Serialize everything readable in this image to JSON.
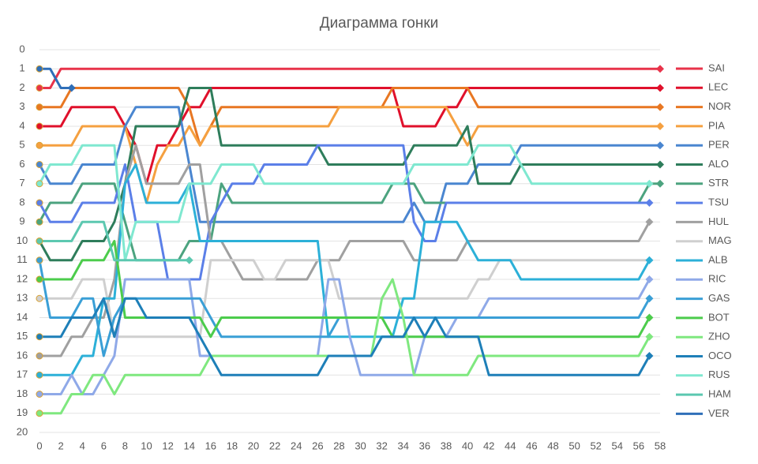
{
  "chart_data": {
    "type": "line",
    "title": "Диаграмма гонки",
    "x": [
      0,
      1,
      2,
      3,
      4,
      5,
      6,
      7,
      8,
      9,
      10,
      11,
      12,
      13,
      14,
      15,
      16,
      17,
      18,
      19,
      20,
      21,
      22,
      23,
      24,
      25,
      26,
      27,
      28,
      29,
      30,
      31,
      32,
      33,
      34,
      35,
      36,
      37,
      38,
      39,
      40,
      41,
      42,
      43,
      44,
      45,
      46,
      47,
      48,
      49,
      50,
      51,
      52,
      53,
      54,
      55,
      56,
      57,
      58
    ],
    "xlim": [
      0,
      58
    ],
    "xticks": [
      0,
      2,
      4,
      6,
      8,
      10,
      12,
      14,
      16,
      18,
      20,
      22,
      24,
      26,
      28,
      30,
      32,
      34,
      36,
      38,
      40,
      42,
      44,
      46,
      48,
      50,
      52,
      54,
      56,
      58
    ],
    "ylim": [
      20,
      0
    ],
    "yticks": [
      0,
      1,
      2,
      3,
      4,
      5,
      6,
      7,
      8,
      9,
      10,
      11,
      12,
      13,
      14,
      15,
      16,
      17,
      18,
      19,
      20
    ],
    "grid": true,
    "series": [
      {
        "name": "SAI",
        "color": "#e8334a",
        "values": [
          2,
          2,
          1,
          1,
          1,
          1,
          1,
          1,
          1,
          1,
          1,
          1,
          1,
          1,
          1,
          1,
          1,
          1,
          1,
          1,
          1,
          1,
          1,
          1,
          1,
          1,
          1,
          1,
          1,
          1,
          1,
          1,
          1,
          1,
          1,
          1,
          1,
          1,
          1,
          1,
          1,
          1,
          1,
          1,
          1,
          1,
          1,
          1,
          1,
          1,
          1,
          1,
          1,
          1,
          1,
          1,
          1,
          1,
          1
        ]
      },
      {
        "name": "LEC",
        "color": "#e0102b",
        "values": [
          4,
          4,
          4,
          3,
          3,
          3,
          3,
          3,
          4,
          5,
          7,
          5,
          5,
          4,
          3,
          3,
          2,
          2,
          2,
          2,
          2,
          2,
          2,
          2,
          2,
          2,
          2,
          2,
          2,
          2,
          2,
          2,
          2,
          2,
          4,
          4,
          4,
          4,
          3,
          3,
          2,
          2,
          2,
          2,
          2,
          2,
          2,
          2,
          2,
          2,
          2,
          2,
          2,
          2,
          2,
          2,
          2,
          2,
          2
        ]
      },
      {
        "name": "NOR",
        "color": "#e87722",
        "values": [
          3,
          3,
          3,
          2,
          2,
          2,
          2,
          2,
          2,
          2,
          2,
          2,
          2,
          2,
          3,
          5,
          4,
          3,
          3,
          3,
          3,
          3,
          3,
          3,
          3,
          3,
          3,
          3,
          3,
          3,
          3,
          3,
          3,
          2,
          2,
          2,
          2,
          2,
          2,
          2,
          2,
          3,
          3,
          3,
          3,
          3,
          3,
          3,
          3,
          3,
          3,
          3,
          3,
          3,
          3,
          3,
          3,
          3,
          3
        ]
      },
      {
        "name": "PIA",
        "color": "#f5a040",
        "values": [
          5,
          5,
          5,
          5,
          4,
          4,
          4,
          4,
          4,
          6,
          8,
          6,
          5,
          5,
          4,
          5,
          4,
          4,
          4,
          4,
          4,
          4,
          4,
          4,
          4,
          4,
          4,
          4,
          3,
          3,
          3,
          3,
          3,
          3,
          3,
          3,
          3,
          3,
          3,
          4,
          5,
          4,
          4,
          4,
          4,
          4,
          4,
          4,
          4,
          4,
          4,
          4,
          4,
          4,
          4,
          4,
          4,
          4,
          4
        ]
      },
      {
        "name": "PER",
        "color": "#4a86d0",
        "values": [
          6,
          7,
          7,
          7,
          6,
          6,
          6,
          6,
          4,
          3,
          3,
          3,
          3,
          3,
          6,
          9,
          9,
          9,
          9,
          9,
          9,
          9,
          9,
          9,
          9,
          9,
          9,
          9,
          9,
          9,
          9,
          9,
          9,
          9,
          9,
          8,
          9,
          9,
          7,
          7,
          7,
          6,
          6,
          6,
          6,
          5,
          5,
          5,
          5,
          5,
          5,
          5,
          5,
          5,
          5,
          5,
          5,
          5,
          5
        ]
      },
      {
        "name": "ALO",
        "color": "#2e7d5b",
        "values": [
          10,
          11,
          11,
          11,
          10,
          10,
          10,
          9,
          7,
          4,
          4,
          4,
          4,
          4,
          2,
          2,
          2,
          5,
          5,
          5,
          5,
          5,
          5,
          5,
          5,
          5,
          5,
          6,
          6,
          6,
          6,
          6,
          6,
          6,
          6,
          5,
          5,
          5,
          5,
          5,
          4,
          7,
          7,
          7,
          7,
          6,
          6,
          6,
          6,
          6,
          6,
          6,
          6,
          6,
          6,
          6,
          6,
          6,
          6
        ]
      },
      {
        "name": "STR",
        "color": "#4ca37f",
        "values": [
          9,
          8,
          8,
          8,
          7,
          7,
          7,
          7,
          9,
          11,
          11,
          11,
          11,
          11,
          10,
          10,
          10,
          7,
          8,
          8,
          8,
          8,
          8,
          8,
          8,
          8,
          8,
          8,
          8,
          8,
          8,
          8,
          8,
          7,
          7,
          7,
          8,
          8,
          8,
          8,
          8,
          8,
          8,
          8,
          8,
          8,
          8,
          8,
          8,
          8,
          8,
          8,
          8,
          8,
          8,
          8,
          8,
          7,
          7
        ]
      },
      {
        "name": "TSU",
        "color": "#5b7fe8",
        "values": [
          8,
          9,
          9,
          9,
          8,
          8,
          8,
          8,
          6,
          9,
          9,
          9,
          12,
          12,
          12,
          12,
          9,
          8,
          7,
          7,
          7,
          6,
          6,
          6,
          6,
          6,
          5,
          5,
          5,
          5,
          5,
          5,
          5,
          5,
          5,
          9,
          10,
          10,
          8,
          8,
          8,
          8,
          8,
          8,
          8,
          8,
          8,
          8,
          8,
          8,
          8,
          8,
          8,
          8,
          8,
          8,
          8,
          8,
          null
        ]
      },
      {
        "name": "HUL",
        "color": "#a0a0a0",
        "values": [
          16,
          16,
          16,
          15,
          15,
          14,
          14,
          12,
          7,
          5,
          7,
          7,
          7,
          7,
          6,
          6,
          10,
          10,
          11,
          12,
          12,
          12,
          12,
          12,
          12,
          12,
          11,
          11,
          11,
          10,
          10,
          10,
          10,
          10,
          10,
          11,
          11,
          11,
          11,
          11,
          10,
          10,
          10,
          10,
          10,
          10,
          10,
          10,
          10,
          10,
          10,
          10,
          10,
          10,
          10,
          10,
          10,
          9,
          null
        ]
      },
      {
        "name": "MAG",
        "color": "#cfcfcf",
        "values": [
          13,
          13,
          13,
          13,
          12,
          12,
          12,
          15,
          15,
          15,
          15,
          15,
          15,
          15,
          15,
          15,
          11,
          11,
          11,
          11,
          11,
          12,
          12,
          11,
          11,
          11,
          11,
          11,
          13,
          13,
          13,
          13,
          13,
          13,
          13,
          13,
          13,
          13,
          13,
          13,
          13,
          12,
          12,
          11,
          11,
          11,
          11,
          11,
          11,
          11,
          11,
          11,
          11,
          11,
          11,
          11,
          11,
          11,
          null
        ]
      },
      {
        "name": "ALB",
        "color": "#2cb0d8",
        "values": [
          17,
          17,
          17,
          17,
          16,
          16,
          13,
          13,
          7,
          6,
          8,
          8,
          8,
          8,
          7,
          10,
          10,
          10,
          10,
          10,
          10,
          10,
          10,
          10,
          10,
          10,
          10,
          15,
          15,
          15,
          15,
          15,
          15,
          15,
          13,
          13,
          9,
          9,
          9,
          9,
          10,
          11,
          11,
          11,
          11,
          12,
          12,
          12,
          12,
          12,
          12,
          12,
          12,
          12,
          12,
          12,
          12,
          11,
          null
        ]
      },
      {
        "name": "RIC",
        "color": "#8fa9e8",
        "values": [
          18,
          18,
          18,
          17,
          18,
          18,
          17,
          16,
          12,
          12,
          12,
          12,
          12,
          12,
          12,
          16,
          16,
          16,
          16,
          16,
          16,
          16,
          16,
          16,
          16,
          16,
          16,
          12,
          12,
          15,
          17,
          17,
          17,
          17,
          17,
          17,
          15,
          15,
          15,
          14,
          14,
          14,
          13,
          13,
          13,
          13,
          13,
          13,
          13,
          13,
          13,
          13,
          13,
          13,
          13,
          13,
          13,
          12,
          null
        ]
      },
      {
        "name": "GAS",
        "color": "#3a9fd6",
        "values": [
          11,
          14,
          14,
          14,
          13,
          13,
          16,
          14,
          13,
          13,
          13,
          13,
          13,
          13,
          13,
          13,
          14,
          15,
          15,
          15,
          15,
          15,
          15,
          15,
          15,
          15,
          15,
          15,
          14,
          14,
          14,
          14,
          14,
          14,
          14,
          14,
          14,
          14,
          14,
          14,
          14,
          14,
          14,
          14,
          14,
          14,
          14,
          14,
          14,
          14,
          14,
          14,
          14,
          14,
          14,
          14,
          14,
          13,
          null
        ]
      },
      {
        "name": "BOT",
        "color": "#4ccc4c",
        "values": [
          12,
          12,
          12,
          12,
          11,
          11,
          11,
          10,
          14,
          14,
          14,
          14,
          14,
          14,
          14,
          14,
          15,
          14,
          14,
          14,
          14,
          14,
          14,
          14,
          14,
          14,
          14,
          14,
          14,
          14,
          14,
          14,
          14,
          15,
          15,
          15,
          15,
          15,
          15,
          15,
          15,
          15,
          15,
          15,
          15,
          15,
          15,
          15,
          15,
          15,
          15,
          15,
          15,
          15,
          15,
          15,
          15,
          14,
          null
        ]
      },
      {
        "name": "ZHO",
        "color": "#7fe87f",
        "values": [
          19,
          19,
          19,
          18,
          18,
          17,
          17,
          18,
          17,
          17,
          17,
          17,
          17,
          17,
          17,
          17,
          16,
          16,
          16,
          16,
          16,
          16,
          16,
          16,
          16,
          16,
          16,
          16,
          16,
          16,
          16,
          16,
          13,
          12,
          14,
          17,
          17,
          17,
          17,
          17,
          17,
          16,
          16,
          16,
          16,
          16,
          16,
          16,
          16,
          16,
          16,
          16,
          16,
          16,
          16,
          16,
          16,
          15,
          null
        ]
      },
      {
        "name": "OCO",
        "color": "#1e7fb8",
        "values": [
          15,
          15,
          15,
          14,
          14,
          14,
          13,
          15,
          13,
          13,
          14,
          14,
          14,
          14,
          14,
          15,
          16,
          17,
          17,
          17,
          17,
          17,
          17,
          17,
          17,
          17,
          17,
          16,
          16,
          16,
          16,
          16,
          15,
          15,
          15,
          14,
          15,
          14,
          15,
          15,
          15,
          15,
          17,
          17,
          17,
          17,
          17,
          17,
          17,
          17,
          17,
          17,
          17,
          17,
          17,
          17,
          17,
          16,
          null
        ]
      },
      {
        "name": "RUS",
        "color": "#7fe8d0",
        "values": [
          7,
          6,
          6,
          6,
          5,
          5,
          5,
          5,
          11,
          9,
          9,
          9,
          9,
          9,
          7,
          7,
          7,
          6,
          6,
          6,
          6,
          7,
          7,
          7,
          7,
          7,
          7,
          7,
          7,
          7,
          7,
          7,
          7,
          7,
          7,
          6,
          6,
          6,
          6,
          6,
          6,
          5,
          5,
          5,
          5,
          6,
          7,
          7,
          7,
          7,
          7,
          7,
          7,
          7,
          7,
          7,
          7,
          7,
          null
        ]
      },
      {
        "name": "HAM",
        "color": "#5cc8b0",
        "values": [
          10,
          10,
          10,
          10,
          9,
          9,
          9,
          11,
          11,
          11,
          11,
          11,
          11,
          11,
          11,
          null,
          null,
          null,
          null,
          null,
          null,
          null,
          null,
          null,
          null,
          null,
          null,
          null,
          null,
          null,
          null,
          null,
          null,
          null,
          null,
          null,
          null,
          null,
          null,
          null,
          null,
          null,
          null,
          null,
          null,
          null,
          null,
          null,
          null,
          null,
          null,
          null,
          null,
          null,
          null,
          null,
          null,
          null,
          null
        ]
      },
      {
        "name": "VER",
        "color": "#2f6fb8",
        "values": [
          1,
          1,
          2,
          2,
          null,
          null,
          null,
          null,
          null,
          null,
          null,
          null,
          null,
          null,
          null,
          null,
          null,
          null,
          null,
          null,
          null,
          null,
          null,
          null,
          null,
          null,
          null,
          null,
          null,
          null,
          null,
          null,
          null,
          null,
          null,
          null,
          null,
          null,
          null,
          null,
          null,
          null,
          null,
          null,
          null,
          null,
          null,
          null,
          null,
          null,
          null,
          null,
          null,
          null,
          null,
          null,
          null,
          null,
          null
        ]
      }
    ]
  }
}
